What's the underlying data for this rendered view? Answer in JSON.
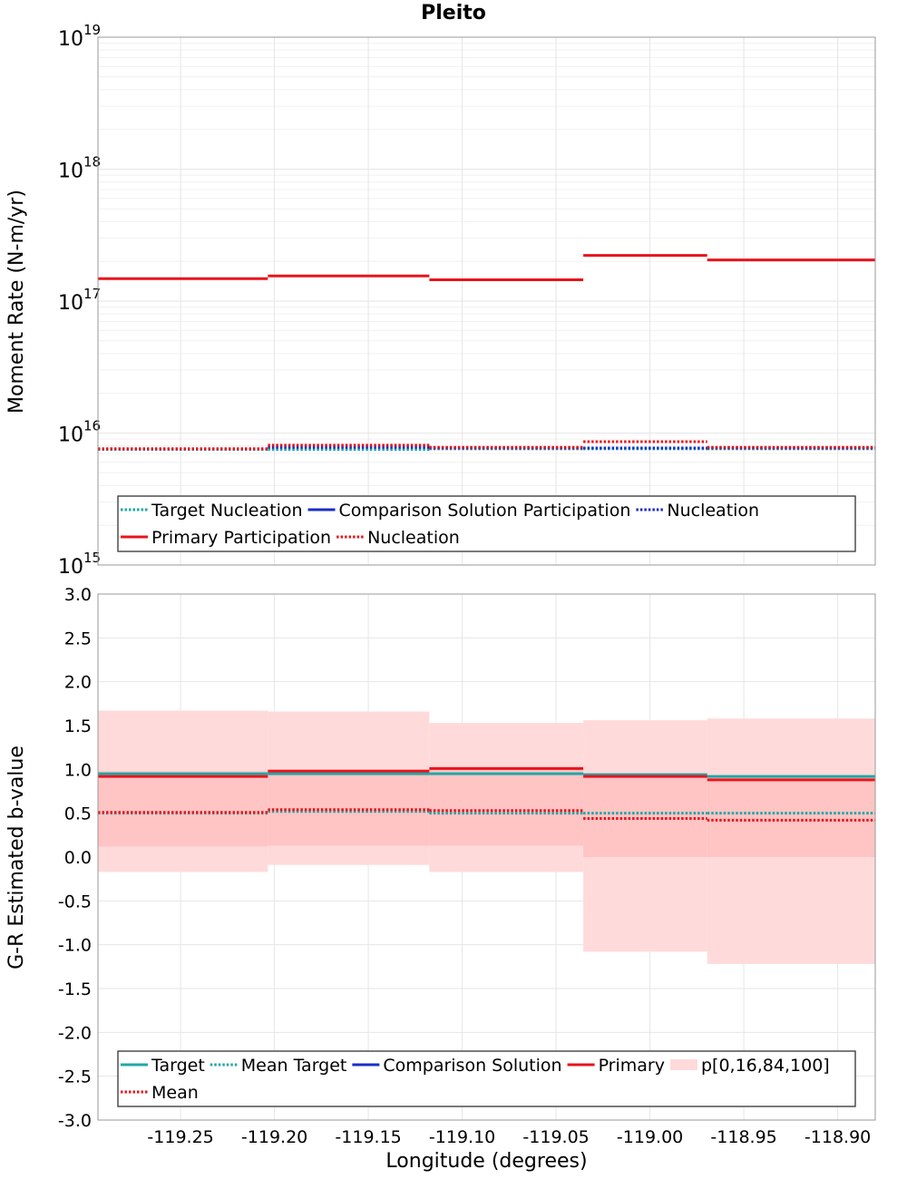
{
  "title": "Pleito",
  "x_axis": {
    "label": "Longitude (degrees)",
    "range": [
      -119.294,
      -118.88
    ],
    "ticks": [
      -119.25,
      -119.2,
      -119.15,
      -119.1,
      -119.05,
      -119.0,
      -118.95,
      -118.9
    ],
    "tick_labels": [
      "-119.25",
      "-119.20",
      "-119.15",
      "-119.10",
      "-119.05",
      "-119.00",
      "-118.95",
      "-118.90"
    ]
  },
  "colors": {
    "target": "#1fa7a7",
    "comparison": "#1a2ec8",
    "primary": "#e8141c",
    "band_outer": "#ffdada",
    "band_inner": "#ffc4c4",
    "grid": "#e6e6e6",
    "frame": "#999999"
  },
  "chart_data": [
    {
      "type": "line",
      "subplot": "top",
      "ylabel": "Moment Rate (N-m/yr)",
      "yscale": "log",
      "ylim": [
        1000000000000000.0,
        1e+19
      ],
      "y_ticks": [
        {
          "base": "10",
          "exp": "15"
        },
        {
          "base": "10",
          "exp": "16"
        },
        {
          "base": "10",
          "exp": "17"
        },
        {
          "base": "10",
          "exp": "18"
        },
        {
          "base": "10",
          "exp": "19"
        }
      ],
      "grid": true,
      "legend_placement": "bottom",
      "bins": [
        [
          -119.294,
          -119.2035
        ],
        [
          -119.2035,
          -119.1175
        ],
        [
          -119.1175,
          -119.0355
        ],
        [
          -119.0355,
          -118.9695
        ],
        [
          -118.9695,
          -118.88
        ]
      ],
      "series": [
        {
          "name": "Target Nucleation",
          "group": "target",
          "style": "dotted",
          "values": [
            7500000000000000.0,
            7500000000000000.0,
            7600000000000000.0,
            7600000000000000.0,
            7600000000000000.0
          ]
        },
        {
          "name": "Comparison Solution Participation",
          "group": "comparison",
          "style": "solid",
          "values": [
            null,
            null,
            null,
            null,
            null
          ]
        },
        {
          "name": "Nucleation",
          "group": "comparison",
          "style": "dotted",
          "values": [
            7600000000000000.0,
            7800000000000000.0,
            7700000000000000.0,
            7700000000000000.0,
            7700000000000000.0
          ]
        },
        {
          "name": "Primary Participation",
          "group": "primary",
          "style": "solid",
          "values": [
            1.48e+17,
            1.55e+17,
            1.45e+17,
            2.22e+17,
            2.05e+17
          ]
        },
        {
          "name": "Nucleation",
          "group": "primary",
          "style": "dotted",
          "values": [
            7600000000000000.0,
            8100000000000000.0,
            7800000000000000.0,
            8600000000000000.0,
            7800000000000000.0
          ]
        }
      ],
      "legend": [
        [
          {
            "label": "Target Nucleation",
            "group": "target",
            "style": "dotted"
          },
          {
            "label": "Comparison Solution Participation",
            "group": "comparison",
            "style": "solid"
          },
          {
            "label": "Nucleation",
            "group": "comparison",
            "style": "dotted"
          }
        ],
        [
          {
            "label": "Primary Participation",
            "group": "primary",
            "style": "solid"
          },
          {
            "label": "Nucleation",
            "group": "primary",
            "style": "dotted"
          }
        ]
      ]
    },
    {
      "type": "line",
      "subplot": "bottom",
      "ylabel": "G-R Estimated b-value",
      "yscale": "linear",
      "ylim": [
        -3.0,
        3.0
      ],
      "y_ticks": [
        "3.0",
        "2.5",
        "2.0",
        "1.5",
        "1.0",
        "0.5",
        "0.0",
        "-0.5",
        "-1.0",
        "-1.5",
        "-2.0",
        "-2.5",
        "-3.0"
      ],
      "grid": true,
      "legend_placement": "bottom",
      "bins": [
        [
          -119.294,
          -119.2035
        ],
        [
          -119.2035,
          -119.1175
        ],
        [
          -119.1175,
          -119.0355
        ],
        [
          -119.0355,
          -118.9695
        ],
        [
          -118.9695,
          -118.88
        ]
      ],
      "bands": {
        "p0": [
          -0.17,
          -0.09,
          -0.17,
          -1.08,
          -1.22
        ],
        "p16": [
          0.12,
          0.13,
          0.13,
          0.0,
          0.0
        ],
        "p84": [
          0.98,
          1.0,
          1.0,
          0.95,
          0.92
        ],
        "p100": [
          1.67,
          1.66,
          1.53,
          1.56,
          1.58
        ]
      },
      "series": [
        {
          "name": "Target",
          "group": "target",
          "style": "solid",
          "values": [
            0.95,
            0.95,
            0.95,
            0.94,
            0.92
          ]
        },
        {
          "name": "Mean Target",
          "group": "target",
          "style": "dotted",
          "values": [
            0.5,
            0.52,
            0.5,
            0.5,
            0.5
          ]
        },
        {
          "name": "Comparison Solution",
          "group": "comparison",
          "style": "solid",
          "values": [
            null,
            null,
            null,
            null,
            null
          ]
        },
        {
          "name": "Primary",
          "group": "primary",
          "style": "solid",
          "values": [
            0.92,
            0.98,
            1.01,
            0.92,
            0.88
          ]
        },
        {
          "name": "Mean",
          "group": "primary",
          "style": "dotted",
          "values": [
            0.51,
            0.54,
            0.53,
            0.44,
            0.42
          ]
        }
      ],
      "legend": [
        [
          {
            "label": "Target",
            "group": "target",
            "style": "solid"
          },
          {
            "label": "Mean Target",
            "group": "target",
            "style": "dotted"
          },
          {
            "label": "Comparison Solution",
            "group": "comparison",
            "style": "solid"
          },
          {
            "label": "Primary",
            "group": "primary",
            "style": "solid"
          },
          {
            "label": "p[0,16,84,100]",
            "group": "band",
            "style": "box"
          }
        ],
        [
          {
            "label": "Mean",
            "group": "primary",
            "style": "dotted"
          }
        ]
      ]
    }
  ]
}
